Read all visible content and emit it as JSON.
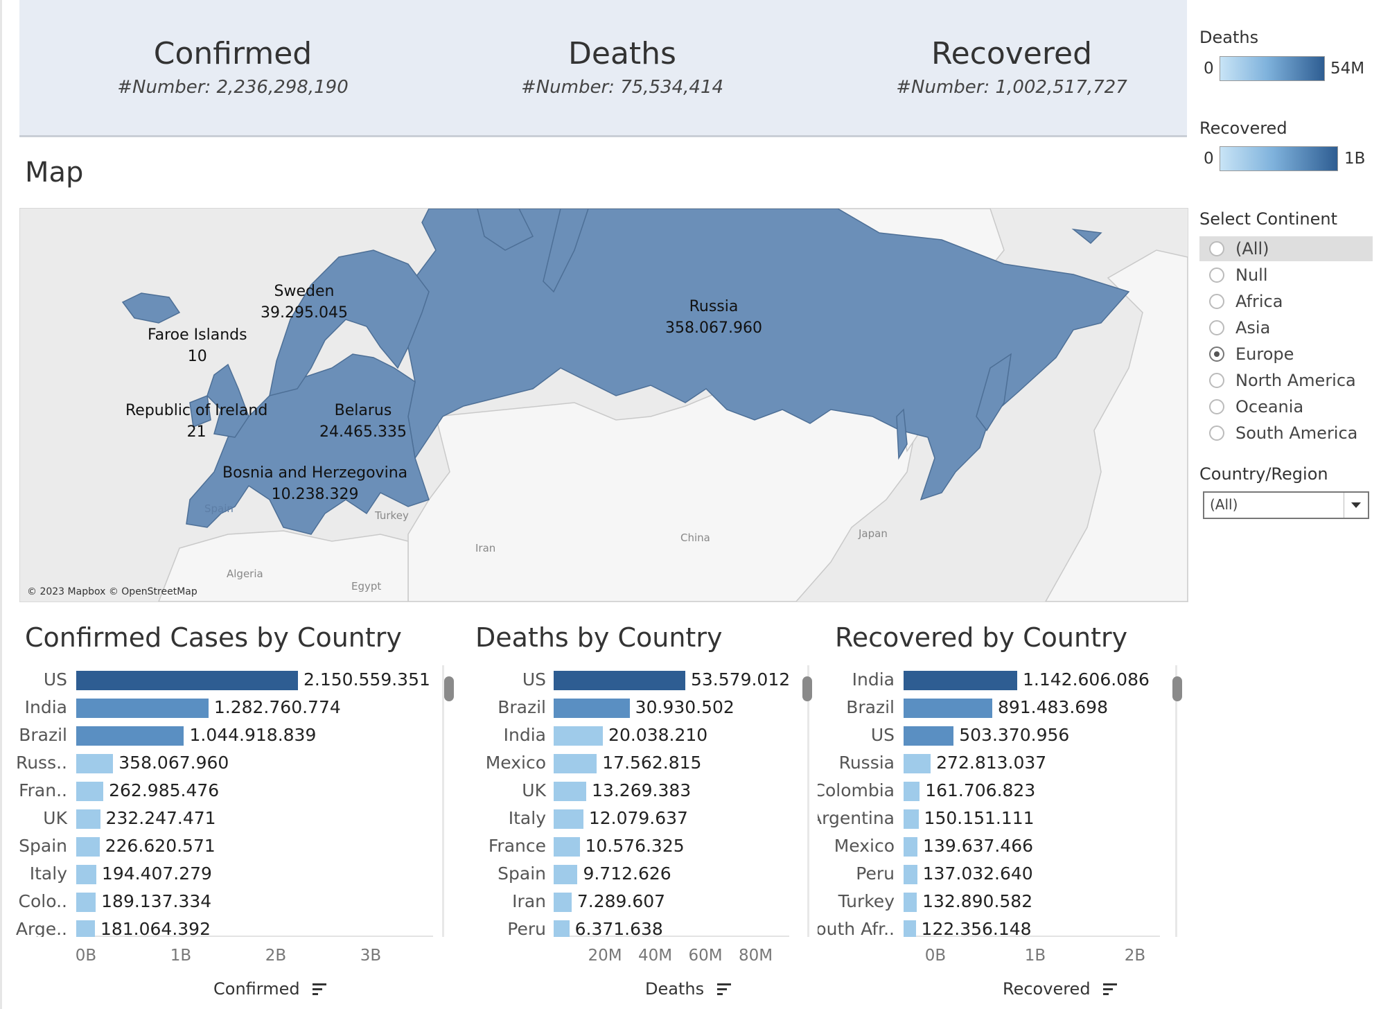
{
  "kpis": [
    {
      "title": "Confirmed",
      "number": "#Number:  2,236,298,190"
    },
    {
      "title": "Deaths",
      "number": "#Number:  75,534,414"
    },
    {
      "title": "Recovered",
      "number": "#Number:  1,002,517,727"
    }
  ],
  "map": {
    "title": "Map",
    "fill_color": "#6b8fb8",
    "credit": "© 2023 Mapbox © OpenStreetMap",
    "labels": [
      {
        "name": "Sweden",
        "value": "39.295.045"
      },
      {
        "name": "Faroe Islands",
        "value": "10"
      },
      {
        "name": "Russia",
        "value": "358.067.960"
      },
      {
        "name": "Republic of Ireland",
        "value": "21"
      },
      {
        "name": "Belarus",
        "value": "24.465.335"
      },
      {
        "name": "Bosnia and Herzegovina",
        "value": "10.238.329"
      }
    ],
    "geo_labels": [
      "Turkey",
      "Iran",
      "China",
      "Japan",
      "Algeria",
      "Egypt",
      "Spain"
    ]
  },
  "legends": {
    "deaths": {
      "title": "Deaths",
      "min": "0",
      "max": "54M"
    },
    "recovered": {
      "title": "Recovered",
      "min": "0",
      "max": "1B"
    }
  },
  "continent_filter": {
    "title": "Select Continent",
    "options": [
      "(All)",
      "Null",
      "Africa",
      "Asia",
      "Europe",
      "North America",
      "Oceania",
      "South America"
    ],
    "highlighted": "(All)",
    "selected": "Europe"
  },
  "country_filter": {
    "title": "Country/Region",
    "value": "(All)"
  },
  "colors": {
    "dark": "#2e5d92",
    "mid": "#5a8fc2",
    "light": "#9fcbea",
    "banner": "#e7ecf4"
  },
  "chart_data": [
    {
      "type": "bar",
      "title": "Confirmed Cases by Country",
      "xlabel": "Confirmed",
      "xlim": [
        0,
        3000000000
      ],
      "ticks": [
        {
          "v": 0,
          "label": "0B"
        },
        {
          "v": 1000000000,
          "label": "1B"
        },
        {
          "v": 2000000000,
          "label": "2B"
        },
        {
          "v": 3000000000,
          "label": "3B"
        }
      ],
      "categories": [
        "US",
        "India",
        "Brazil",
        "Russ..",
        "Fran..",
        "UK",
        "Spain",
        "Italy",
        "Colo..",
        "Arge.."
      ],
      "values": [
        2150559351,
        1282760774,
        1044918839,
        358067960,
        262985476,
        232247471,
        226620571,
        194407279,
        189137334,
        181064392
      ],
      "labels": [
        "2.150.559.351",
        "1.282.760.774",
        "1.044.918.839",
        "358.067.960",
        "262.985.476",
        "232.247.471",
        "226.620.571",
        "194.407.279",
        "189.137.334",
        "181.064.392"
      ],
      "shades": [
        "dark",
        "mid",
        "mid",
        "light",
        "light",
        "light",
        "light",
        "light",
        "light",
        "light"
      ]
    },
    {
      "type": "bar",
      "title": "Deaths by Country",
      "xlabel": "Deaths",
      "xlim": [
        0,
        90000000
      ],
      "ticks": [
        {
          "v": 20000000,
          "label": "20M"
        },
        {
          "v": 40000000,
          "label": "40M"
        },
        {
          "v": 60000000,
          "label": "60M"
        },
        {
          "v": 80000000,
          "label": "80M"
        }
      ],
      "categories": [
        "US",
        "Brazil",
        "India",
        "Mexico",
        "UK",
        "Italy",
        "France",
        "Spain",
        "Iran",
        "Peru"
      ],
      "values": [
        53579012,
        30930502,
        20038210,
        17562815,
        13269383,
        12079637,
        10576325,
        9712626,
        7289607,
        6371638
      ],
      "labels": [
        "53.579.012",
        "30.930.502",
        "20.038.210",
        "17.562.815",
        "13.269.383",
        "12.079.637",
        "10.576.325",
        "9.712.626",
        "7.289.607",
        "6.371.638"
      ],
      "shades": [
        "dark",
        "mid",
        "light",
        "light",
        "light",
        "light",
        "light",
        "light",
        "light",
        "light"
      ]
    },
    {
      "type": "bar",
      "title": "Recovered by Country",
      "xlabel": "Recovered",
      "xlim": [
        0,
        2500000000
      ],
      "ticks": [
        {
          "v": 0,
          "label": "0B"
        },
        {
          "v": 1000000000,
          "label": "1B"
        },
        {
          "v": 2000000000,
          "label": "2B"
        }
      ],
      "categories": [
        "India",
        "Brazil",
        "US",
        "Russia",
        "Colombia",
        "Argentina",
        "Mexico",
        "Peru",
        "Turkey",
        "South Afr.."
      ],
      "values": [
        1142606086,
        891483698,
        503370956,
        272813037,
        161706823,
        150151111,
        139637466,
        137032640,
        132890582,
        122356148
      ],
      "labels": [
        "1.142.606.086",
        "891.483.698",
        "503.370.956",
        "272.813.037",
        "161.706.823",
        "150.151.111",
        "139.637.466",
        "137.032.640",
        "132.890.582",
        "122.356.148"
      ],
      "shades": [
        "dark",
        "mid",
        "mid",
        "light",
        "light",
        "light",
        "light",
        "light",
        "light",
        "light"
      ]
    }
  ]
}
